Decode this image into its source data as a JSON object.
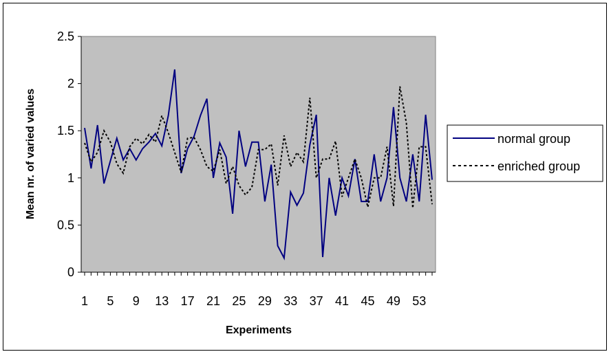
{
  "chart_data": {
    "type": "line",
    "title": "",
    "xlabel": "Experiments",
    "ylabel": "Mean nr. of varied values",
    "ylim": [
      0,
      2.5
    ],
    "yticks": [
      "0",
      "0.5",
      "1",
      "1.5",
      "2",
      "2.5"
    ],
    "x": [
      1,
      2,
      3,
      4,
      5,
      6,
      7,
      8,
      9,
      10,
      11,
      12,
      13,
      14,
      15,
      16,
      17,
      18,
      19,
      20,
      21,
      22,
      23,
      24,
      25,
      26,
      27,
      28,
      29,
      30,
      31,
      32,
      33,
      34,
      35,
      36,
      37,
      38,
      39,
      40,
      41,
      42,
      43,
      44,
      45,
      46,
      47,
      48,
      49,
      50,
      51,
      52,
      53,
      54,
      55
    ],
    "xtick_labels": [
      "1",
      "5",
      "9",
      "13",
      "17",
      "21",
      "25",
      "29",
      "33",
      "37",
      "41",
      "45",
      "49",
      "53"
    ],
    "xtick_values": [
      1,
      5,
      9,
      13,
      17,
      21,
      25,
      29,
      33,
      37,
      41,
      45,
      49,
      53
    ],
    "grid": false,
    "plot_background": "#c0c0c0",
    "legend_position": "right",
    "series": [
      {
        "name": "normal group",
        "color": "#000080",
        "style": "solid",
        "values": [
          1.53,
          1.1,
          1.56,
          0.94,
          1.18,
          1.42,
          1.19,
          1.31,
          1.19,
          1.31,
          1.38,
          1.47,
          1.34,
          1.66,
          2.15,
          1.05,
          1.31,
          1.44,
          1.66,
          1.84,
          1.0,
          1.37,
          1.22,
          0.62,
          1.5,
          1.12,
          1.38,
          1.38,
          0.75,
          1.14,
          0.28,
          0.15,
          0.85,
          0.71,
          0.84,
          1.35,
          1.67,
          0.16,
          1.0,
          0.6,
          1.0,
          0.81,
          1.2,
          0.75,
          0.75,
          1.25,
          0.75,
          1.0,
          1.75,
          1.0,
          0.75,
          1.25,
          0.75,
          1.67,
          0.98
        ]
      },
      {
        "name": "enriched group",
        "color": "#000000",
        "style": "dotted",
        "values": [
          1.37,
          1.17,
          1.27,
          1.5,
          1.38,
          1.15,
          1.05,
          1.33,
          1.42,
          1.36,
          1.46,
          1.38,
          1.66,
          1.48,
          1.27,
          1.06,
          1.42,
          1.43,
          1.3,
          1.12,
          1.07,
          1.3,
          0.94,
          1.12,
          0.92,
          0.82,
          0.9,
          1.3,
          1.3,
          1.36,
          0.92,
          1.45,
          1.12,
          1.27,
          1.17,
          1.85,
          1.0,
          1.2,
          1.2,
          1.39,
          0.8,
          1.0,
          1.2,
          1.0,
          0.69,
          1.0,
          1.0,
          1.33,
          0.7,
          1.97,
          1.58,
          0.68,
          1.33,
          1.33,
          0.72
        ]
      }
    ]
  }
}
